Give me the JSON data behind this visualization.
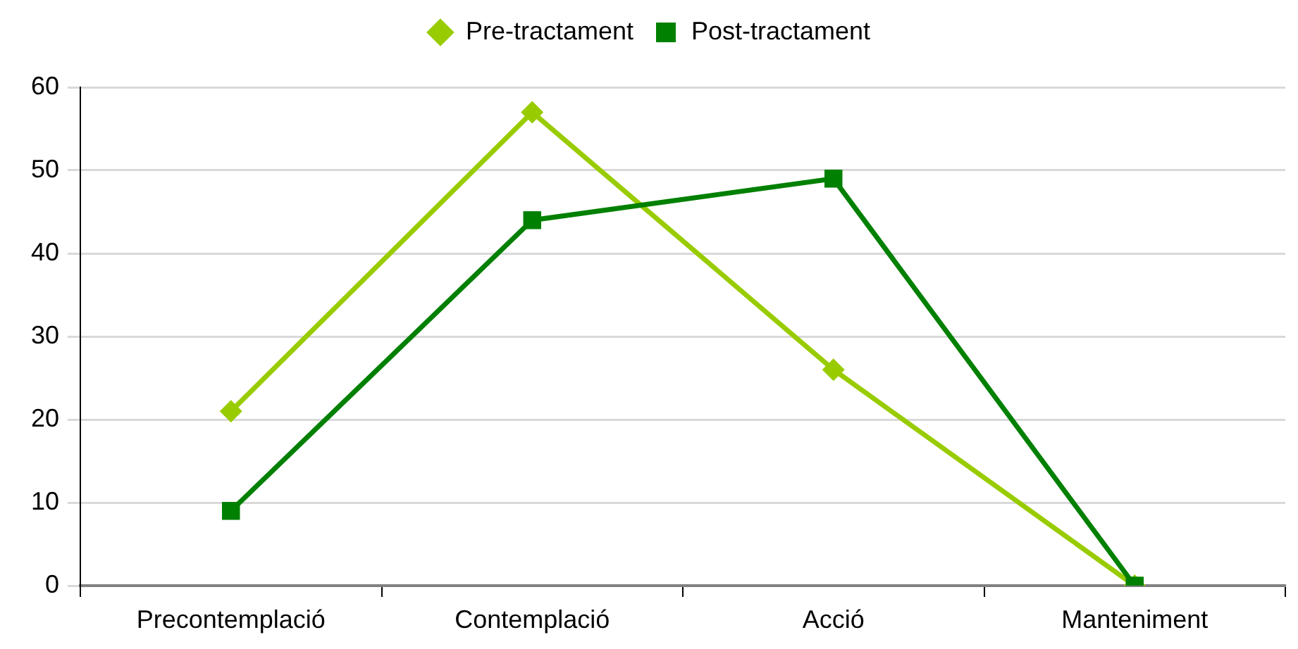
{
  "chart_data": {
    "type": "line",
    "categories": [
      "Precontemplació",
      "Contemplació",
      "Acció",
      "Manteniment"
    ],
    "series": [
      {
        "name": "Pre-tractament",
        "color": "#99cc00",
        "marker": "diamond",
        "values": [
          21,
          57,
          26,
          0
        ]
      },
      {
        "name": "Post-tractament",
        "color": "#008000",
        "marker": "square",
        "values": [
          9,
          44,
          49,
          0
        ]
      }
    ],
    "ylim": [
      0,
      60
    ],
    "yticks": [
      0,
      10,
      20,
      30,
      40,
      50,
      60
    ],
    "grid": "y",
    "legend": "top",
    "line_style": "solid"
  }
}
